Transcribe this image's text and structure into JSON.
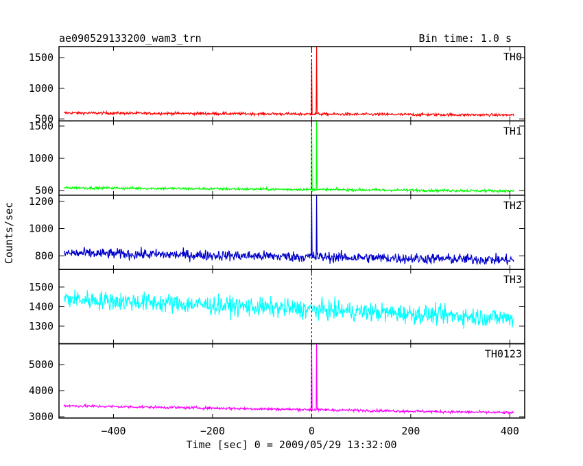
{
  "header": {
    "title": "ae090529133200_wam3_trn",
    "bin_time": "Bin time: 1.0 s"
  },
  "chart_data": {
    "type": "line",
    "xlabel": "Time [sec] 0 = 2009/05/29 13:32:00",
    "ylabel": "Counts/sec",
    "xlim": [
      -510,
      430
    ],
    "x_ticks": [
      -400,
      -200,
      0,
      200,
      400
    ],
    "x_tick_labels": [
      "−400",
      "−200",
      "0",
      "200",
      "400"
    ],
    "x_range_data": [
      -500,
      408
    ],
    "grid": false,
    "dashed_marker_x": 0,
    "panels": [
      {
        "name": "TH0",
        "color": "#ff0000",
        "ylim": [
          470,
          1680
        ],
        "y_ticks": [
          500,
          1000,
          1500
        ],
        "baseline_start": 600,
        "baseline_end": 565,
        "noise": 22,
        "peaks": [
          {
            "x": 0,
            "value": 1450
          },
          {
            "x": 10,
            "value": 1680
          }
        ]
      },
      {
        "name": "TH1",
        "color": "#00ff00",
        "ylim": [
          430,
          1580
        ],
        "y_ticks": [
          500,
          1000,
          1500
        ],
        "baseline_start": 545,
        "baseline_end": 495,
        "noise": 20,
        "peaks": [
          {
            "x": 0,
            "value": 1480
          },
          {
            "x": 10,
            "value": 1580
          }
        ]
      },
      {
        "name": "TH2",
        "color": "#0000cc",
        "ylim": [
          700,
          1245
        ],
        "y_ticks": [
          800,
          1000,
          1200
        ],
        "baseline_start": 820,
        "baseline_end": 770,
        "noise": 38,
        "peaks": [
          {
            "x": 0,
            "value": 1240
          },
          {
            "x": 10,
            "value": 1245
          }
        ]
      },
      {
        "name": "TH3",
        "color": "#00ffff",
        "ylim": [
          1210,
          1590
        ],
        "y_ticks": [
          1300,
          1400,
          1500
        ],
        "baseline_start": 1440,
        "baseline_end": 1340,
        "noise": 48,
        "peaks": []
      },
      {
        "name": "TH0123",
        "color": "#ff00ff",
        "ylim": [
          2950,
          5800
        ],
        "y_ticks": [
          3000,
          4000,
          5000
        ],
        "baseline_start": 3420,
        "baseline_end": 3150,
        "noise": 50,
        "peaks": [
          {
            "x": 0,
            "value": 5600
          },
          {
            "x": 10,
            "value": 5800
          }
        ]
      }
    ]
  }
}
